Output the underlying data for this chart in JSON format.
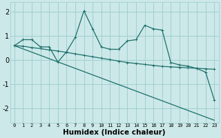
{
  "xlabel": "Humidex (Indice chaleur)",
  "x_ticks": [
    0,
    1,
    2,
    3,
    4,
    5,
    6,
    7,
    8,
    9,
    10,
    11,
    12,
    13,
    14,
    15,
    16,
    17,
    18,
    19,
    20,
    21,
    22,
    23
  ],
  "xlim": [
    -0.5,
    23.5
  ],
  "ylim": [
    -2.6,
    2.4
  ],
  "y_ticks": [
    -2,
    -1,
    0,
    1,
    2
  ],
  "bg_color": "#cce8e8",
  "grid_color": "#99cccc",
  "line_color": "#1a6e6a",
  "series1_x": [
    0,
    1,
    2,
    3,
    4,
    5,
    6,
    7,
    8,
    9,
    10,
    11,
    12,
    13,
    14,
    15,
    16,
    17,
    18,
    19,
    20,
    21,
    22,
    23
  ],
  "series1_y": [
    0.6,
    0.85,
    0.85,
    0.55,
    0.55,
    -0.08,
    0.35,
    0.95,
    2.05,
    1.3,
    0.55,
    0.45,
    0.45,
    0.8,
    0.85,
    1.45,
    1.3,
    1.25,
    -0.1,
    -0.2,
    -0.25,
    -0.35,
    -0.5,
    -1.65
  ],
  "series2_x": [
    0,
    1,
    2,
    3,
    4,
    5,
    6,
    7,
    8,
    9,
    10,
    11,
    12,
    13,
    14,
    15,
    16,
    17,
    18,
    19,
    20,
    21,
    22,
    23
  ],
  "series2_y": [
    0.6,
    0.58,
    0.52,
    0.48,
    0.42,
    0.38,
    0.32,
    0.26,
    0.2,
    0.14,
    0.08,
    0.02,
    -0.04,
    -0.1,
    -0.14,
    -0.18,
    -0.22,
    -0.26,
    -0.28,
    -0.3,
    -0.32,
    -0.34,
    -0.36,
    -0.38
  ],
  "series3_x": [
    0,
    23
  ],
  "series3_y": [
    0.6,
    -2.5
  ]
}
